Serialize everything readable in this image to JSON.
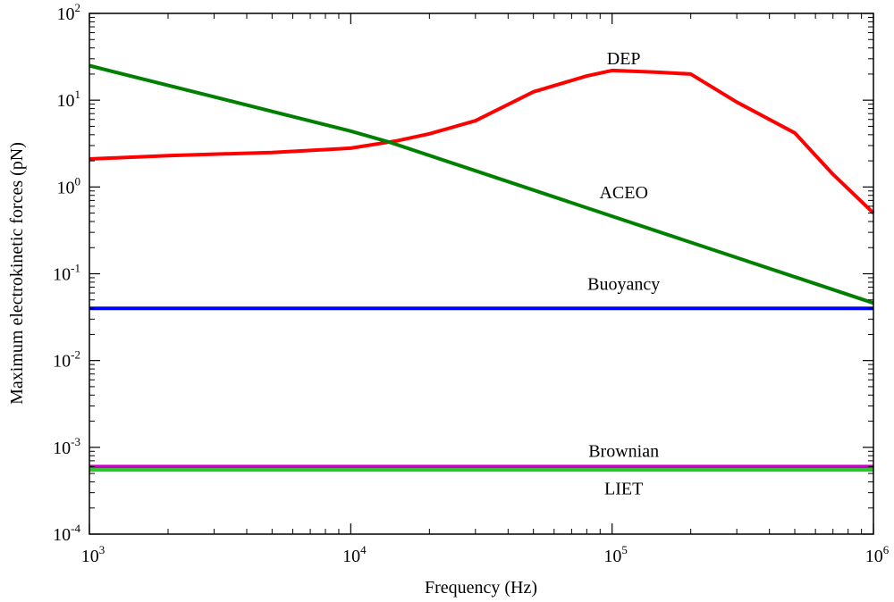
{
  "chart_data": {
    "type": "line",
    "title": "",
    "xlabel": "Frequency (Hz)",
    "ylabel": "Maximum electrokinetic forces (pN)",
    "xscale": "log",
    "yscale": "log",
    "xlim": [
      1000,
      1000000
    ],
    "ylim": [
      0.0001,
      100
    ],
    "grid": false,
    "x_ticks": [
      {
        "base": "10",
        "exp": "3",
        "value": 1000
      },
      {
        "base": "10",
        "exp": "4",
        "value": 10000
      },
      {
        "base": "10",
        "exp": "5",
        "value": 100000
      },
      {
        "base": "10",
        "exp": "6",
        "value": 1000000
      }
    ],
    "y_ticks": [
      {
        "base": "10",
        "exp": "-4",
        "value": 0.0001
      },
      {
        "base": "10",
        "exp": "-3",
        "value": 0.001
      },
      {
        "base": "10",
        "exp": "-2",
        "value": 0.01
      },
      {
        "base": "10",
        "exp": "-1",
        "value": 0.1
      },
      {
        "base": "10",
        "exp": "0",
        "value": 1
      },
      {
        "base": "10",
        "exp": "1",
        "value": 10
      },
      {
        "base": "10",
        "exp": "2",
        "value": 100
      }
    ],
    "series": [
      {
        "name": "DEP",
        "color": "#ff0000",
        "x": [
          1000,
          2000,
          5000,
          10000,
          15000,
          20000,
          30000,
          50000,
          80000,
          100000,
          150000,
          200000,
          300000,
          500000,
          700000,
          1000000
        ],
        "y": [
          2.1,
          2.3,
          2.5,
          2.8,
          3.4,
          4.1,
          5.8,
          12.5,
          19,
          22,
          21,
          20,
          9.5,
          4.2,
          1.4,
          0.5
        ]
      },
      {
        "name": "ACEO",
        "color": "#008000",
        "x": [
          1000,
          10000,
          14000,
          100000,
          1000000
        ],
        "y": [
          25,
          4.4,
          3.3,
          0.46,
          0.046
        ]
      },
      {
        "name": "Buoyancy",
        "color": "#0000ff",
        "x": [
          1000,
          1000000
        ],
        "y": [
          0.04,
          0.04
        ]
      },
      {
        "name": "Brownian",
        "color": "#cc00cc",
        "x": [
          1000,
          1000000
        ],
        "y": [
          0.0006,
          0.0006
        ]
      },
      {
        "name": "LIET",
        "color": "#22cc22",
        "x": [
          1000,
          1000000
        ],
        "y": [
          0.00055,
          0.00055
        ]
      }
    ],
    "annotations": [
      {
        "text": "DEP",
        "series": "DEP",
        "anchor_x": 100000,
        "anchor_y": 30
      },
      {
        "text": "ACEO",
        "series": "ACEO",
        "anchor_x": 100000,
        "anchor_y": 0.85
      },
      {
        "text": "Buoyancy",
        "series": "Buoyancy",
        "anchor_x": 100000,
        "anchor_y": 0.075
      },
      {
        "text": "Brownian",
        "series": "Brownian",
        "anchor_x": 100000,
        "anchor_y": 0.0009
      },
      {
        "text": "LIET",
        "series": "LIET",
        "anchor_x": 100000,
        "anchor_y": 0.00033
      }
    ]
  }
}
